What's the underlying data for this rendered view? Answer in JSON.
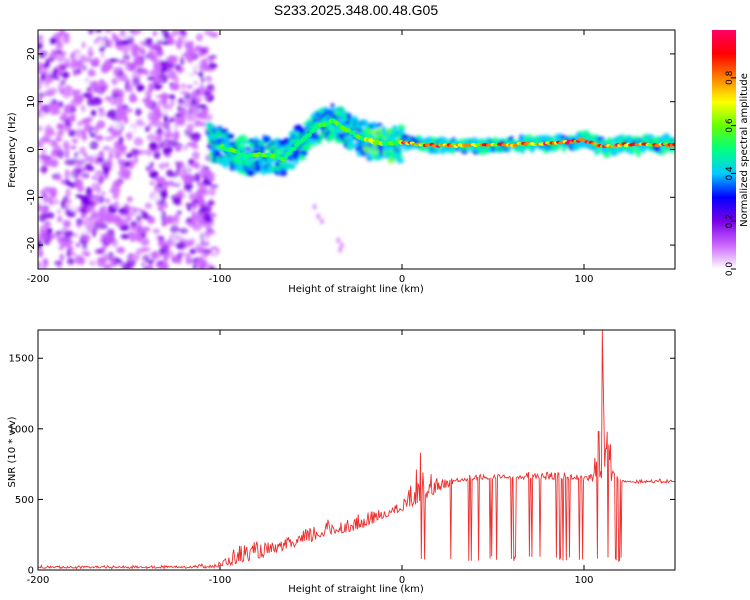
{
  "figure_title": "S233.2025.348.00.48.G05",
  "chart_data": [
    {
      "type": "heatmap",
      "title": "S233.2025.348.00.48.G05",
      "xlabel": "Height of straight line (km)",
      "ylabel": "Frequency (Hz)",
      "xlim": [
        -200,
        150
      ],
      "ylim": [
        -25,
        25
      ],
      "x_ticks": [
        -200,
        -100,
        0,
        100
      ],
      "x_tick_labels": [
        "-200",
        "-100",
        "0",
        "100"
      ],
      "y_ticks": [
        -20,
        -10,
        0,
        10,
        20
      ],
      "y_tick_labels": [
        "-20",
        "-10",
        "0",
        "10",
        "20"
      ],
      "colorbar": {
        "label": "Normalized spectral amplitude",
        "range": [
          0,
          1
        ],
        "ticks": [
          0,
          0.2,
          0.4,
          0.6,
          0.8
        ],
        "tick_labels": [
          "0.0",
          "0.2",
          "0.4",
          "0.6",
          "0.8"
        ],
        "colormap": [
          "#ffffff",
          "#cc66ff",
          "#7a00e6",
          "#0000ff",
          "#00ccff",
          "#00ff80",
          "#66ff00",
          "#ffff00",
          "#ff8000",
          "#ff0000",
          "#ff0066"
        ]
      },
      "ridge": {
        "description": "dominant frequency track vs height",
        "x": [
          -105,
          -95,
          -85,
          -75,
          -65,
          -55,
          -45,
          -38,
          -30,
          -20,
          -10,
          0,
          10,
          30,
          60,
          90,
          100,
          110,
          120,
          150
        ],
        "y": [
          1.5,
          0,
          -1.5,
          -1,
          -2,
          2,
          5,
          6,
          4,
          2,
          1.2,
          1.5,
          1,
          0.8,
          1,
          1.5,
          2,
          0.5,
          1,
          1
        ]
      }
    },
    {
      "type": "line",
      "xlabel": "Height of straight line (km)",
      "ylabel": "SNR (10 * v/v)",
      "xlim": [
        -200,
        150
      ],
      "ylim": [
        0,
        1700
      ],
      "x_ticks": [
        -200,
        -100,
        0,
        100
      ],
      "x_tick_labels": [
        "-200",
        "-100",
        "0",
        "100"
      ],
      "y_ticks": [
        0,
        500,
        1000,
        1500
      ],
      "y_tick_labels": [
        "0",
        "500",
        "1000",
        "1500"
      ],
      "color": "#ee3030",
      "envelope": {
        "x": [
          -200,
          -160,
          -120,
          -100,
          -90,
          -80,
          -70,
          -60,
          -50,
          -40,
          -30,
          -20,
          -10,
          0,
          10,
          20,
          30,
          40,
          60,
          80,
          100,
          105,
          110,
          115,
          120,
          150
        ],
        "base": [
          15,
          15,
          15,
          20,
          50,
          80,
          120,
          160,
          200,
          250,
          270,
          300,
          370,
          420,
          480,
          560,
          620,
          640,
          650,
          640,
          640,
          620,
          620,
          630,
          620,
          620
        ],
        "peak": [
          30,
          30,
          35,
          60,
          200,
          220,
          200,
          250,
          330,
          380,
          380,
          420,
          450,
          480,
          830,
          650,
          670,
          680,
          690,
          700,
          690,
          700,
          1700,
          850,
          650,
          640
        ]
      },
      "spikes": [
        {
          "x": 10,
          "y": 830
        },
        {
          "x": 108,
          "y": 980
        },
        {
          "x": 110,
          "y": 1700
        },
        {
          "x": 112,
          "y": 860
        }
      ],
      "dropouts_range_km": [
        10,
        122
      ]
    }
  ]
}
